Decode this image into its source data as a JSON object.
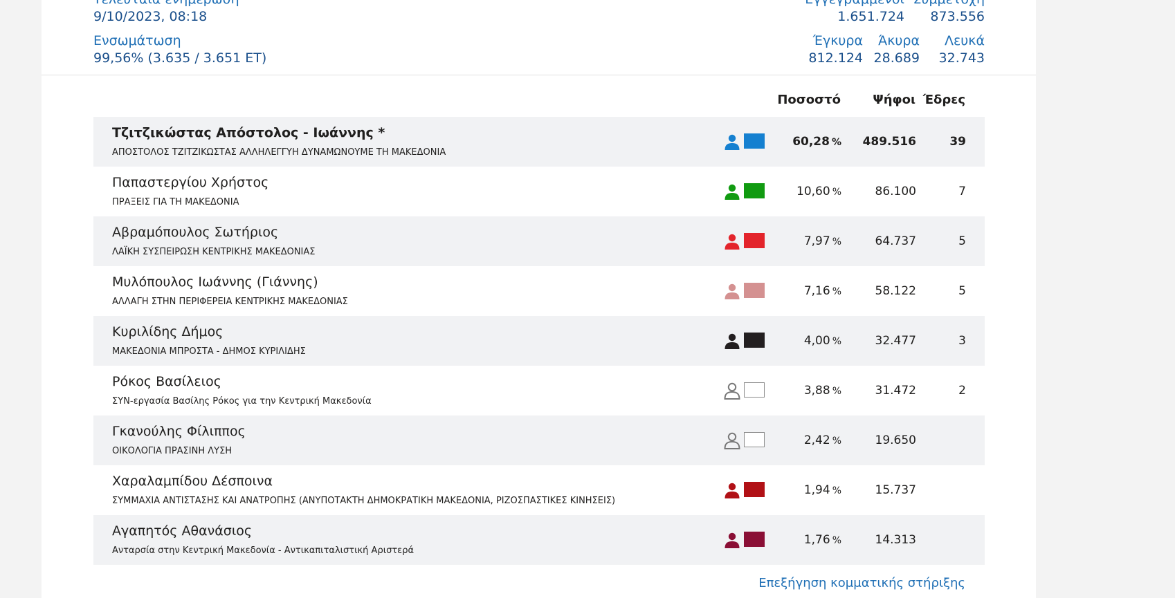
{
  "summary": {
    "last_update_label": "Τελευταία ενημέρωση",
    "last_update_value": "9/10/2023, 08:18",
    "registered_label": "Εγγεγραμμένοι",
    "registered_value": "1.651.724",
    "turnout_label": "Συμμετοχή",
    "turnout_value": "873.556",
    "integration_label": "Ενσωμάτωση",
    "integration_value": "99,56% (3.635 / 3.651 ΕΤ)",
    "valid_label": "Έγκυρα",
    "valid_value": "812.124",
    "invalid_label": "Άκυρα",
    "invalid_value": "28.689",
    "blank_label": "Λευκά",
    "blank_value": "32.743"
  },
  "table": {
    "headers": {
      "percent": "Ποσοστό",
      "votes": "Ψήφοι",
      "seats": "Έδρες"
    },
    "rows": [
      {
        "name": "Τζιτζικώστας Απόστολος - Ιωάννης *",
        "party": "ΑΠΟΣΤΟΛΟΣ ΤΖΙΤΖΙΚΩΣΤΑΣ ΑΛΛΗΛΕΓΓΥΗ ΔΥΝΑΜΩΝΟΥΜΕ ΤΗ ΜΑΚΕΔΟΝΙΑ",
        "percent": "60,28",
        "votes": "489.516",
        "seats": "39",
        "color": "#1580d0",
        "outline": false,
        "lead": true
      },
      {
        "name": "Παπαστεργίου Χρήστος",
        "party": "ΠΡΑΞΕΙΣ ΓΙΑ ΤΗ ΜΑΚΕΔΟΝΙΑ",
        "percent": "10,60",
        "votes": "86.100",
        "seats": "7",
        "color": "#119b11",
        "outline": false,
        "lead": false
      },
      {
        "name": "Αβραμόπουλος Σωτήριος",
        "party": "ΛΑΪΚΗ ΣΥΣΠΕΙΡΩΣΗ ΚΕΝΤΡΙΚΗΣ ΜΑΚΕΔΟΝΙΑΣ",
        "percent": "7,97",
        "votes": "64.737",
        "seats": "5",
        "color": "#e3242b",
        "outline": false,
        "lead": false
      },
      {
        "name": "Μυλόπουλος Ιωάννης (Γιάννης)",
        "party": "ΑΛΛΑΓΗ ΣΤΗΝ ΠΕΡΙΦΕΡΕΙΑ ΚΕΝΤΡΙΚΗΣ ΜΑΚΕΔΟΝΙΑΣ",
        "percent": "7,16",
        "votes": "58.122",
        "seats": "5",
        "color": "#d49191",
        "outline": false,
        "lead": false
      },
      {
        "name": "Κυριλίδης Δήμος",
        "party": "ΜΑΚΕΔΟΝΙΑ ΜΠΡΟΣΤΑ - ΔΗΜΟΣ ΚΥΡΙΛΙΔΗΣ",
        "percent": "4,00",
        "votes": "32.477",
        "seats": "3",
        "color": "#231f20",
        "outline": false,
        "lead": false
      },
      {
        "name": "Ρόκος Βασίλειος",
        "party": "ΣΥΝ-εργασία Βασίλης Ρόκος για την Κεντρική Μακεδονία",
        "percent": "3,88",
        "votes": "31.472",
        "seats": "2",
        "color": "#ffffff",
        "outline": true,
        "lead": false
      },
      {
        "name": "Γκανούλης Φίλιππος",
        "party": "ΟΙΚΟΛΟΓΙΑ ΠΡΑΣΙΝΗ ΛΥΣΗ",
        "percent": "2,42",
        "votes": "19.650",
        "seats": "",
        "color": "#ffffff",
        "outline": true,
        "lead": false
      },
      {
        "name": "Χαραλαμπίδου Δέσποινα",
        "party": "ΣΥΜΜΑΧΙΑ ΑΝΤΙΣΤΑΣΗΣ ΚΑΙ ΑΝΑΤΡΟΠΗΣ (ΑΝΥΠΟΤΑΚΤΗ ΔΗΜΟΚΡΑΤΙΚΗ ΜΑΚΕΔΟΝΙΑ, ΡΙΖΟΣΠΑΣΤΙΚΕΣ ΚΙΝΗΣΕΙΣ)",
        "percent": "1,94",
        "votes": "15.737",
        "seats": "",
        "color": "#b11116",
        "outline": false,
        "lead": false
      },
      {
        "name": "Αγαπητός Αθανάσιος",
        "party": "Ανταρσία στην Κεντρική Μακεδονία - Αντικαπιταλιστική Αριστερά",
        "percent": "1,76",
        "votes": "14.313",
        "seats": "",
        "color": "#8a0f35",
        "outline": false,
        "lead": false
      }
    ]
  },
  "percent_symbol": "%",
  "footer_link": "Επεξήγηση κομματικής στήριξης"
}
